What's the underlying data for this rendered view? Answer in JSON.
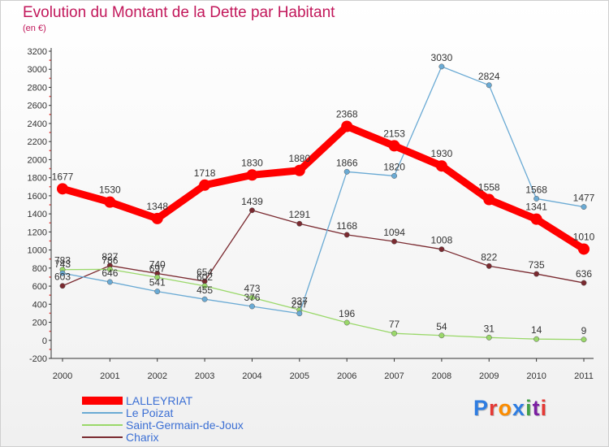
{
  "title": "Evolution du Montant de la Dette par Habitant",
  "subtitle": "(en €)",
  "logo": "Proxiti",
  "colors": {
    "title": "#c2185b",
    "logo": [
      "#2f7de1",
      "#e53935",
      "#fb8c00",
      "#2f7de1",
      "#43a047",
      "#7b1fa2",
      "#e53935"
    ]
  },
  "chart_data": {
    "type": "line",
    "title": "Evolution du Montant de la Dette par Habitant",
    "ylabel": "(en €)",
    "xlabel": "",
    "x": [
      "2000",
      "2001",
      "2002",
      "2003",
      "2004",
      "2005",
      "2006",
      "2007",
      "2008",
      "2009",
      "2010",
      "2011"
    ],
    "ylim": [
      -200,
      3200
    ],
    "yticks": [
      "-200",
      "0",
      "200",
      "400",
      "600",
      "800",
      "1000",
      "1200",
      "1400",
      "1600",
      "1800",
      "2000",
      "2200",
      "2400",
      "2600",
      "2800",
      "3000",
      "3200"
    ],
    "grid": false,
    "legend": "bottom-left",
    "series": [
      {
        "name": "LALLEYRIAT",
        "color": "#ff0000",
        "values": [
          1677,
          1530,
          1348,
          1718,
          1830,
          1880,
          2368,
          2153,
          1930,
          1558,
          1341,
          1010
        ],
        "labels": [
          "1677",
          "1530",
          "1348",
          "1718",
          "1830",
          "1880",
          "2368",
          "2153",
          "1930",
          "1558",
          "1341",
          "1010"
        ]
      },
      {
        "name": "Le Poizat",
        "color": "#6aaad4",
        "values": [
          743,
          646,
          541,
          455,
          376,
          297,
          1866,
          1820,
          3030,
          2824,
          1568,
          1477
        ],
        "labels": [
          "743",
          "646",
          "541",
          "455",
          "376",
          "297",
          "1866",
          "1820",
          "3030",
          "2824",
          "1568",
          "1477"
        ]
      },
      {
        "name": "Saint-Germain-de-Joux",
        "color": "#9ad86a",
        "values": [
          783,
          786,
          697,
          602,
          473,
          337,
          196,
          77,
          54,
          31,
          14,
          9
        ],
        "labels": [
          "783",
          "786",
          "697",
          "602",
          "473",
          "337",
          "196",
          "77",
          "54",
          "31",
          "14",
          "9"
        ]
      },
      {
        "name": "Charix",
        "color": "#7a2a30",
        "values": [
          603,
          827,
          740,
          654,
          1439,
          1291,
          1168,
          1094,
          1008,
          822,
          735,
          636
        ],
        "labels": [
          "603",
          "827",
          "740",
          "654",
          "1439",
          "1291",
          "1168",
          "1094",
          "1008",
          "822",
          "735",
          "636"
        ]
      }
    ]
  }
}
